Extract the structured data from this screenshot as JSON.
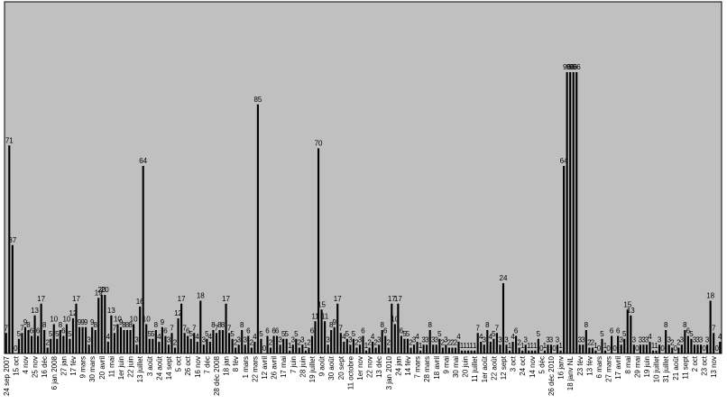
{
  "chart_data": {
    "type": "bar",
    "color": "#000000",
    "background": "#c0c0c0",
    "ylim": [
      0,
      120
    ],
    "categories": [
      "24 sep 2007",
      null,
      null,
      "15 oct",
      null,
      null,
      "4 nov",
      null,
      null,
      "25 nov",
      null,
      null,
      "16 déc",
      null,
      null,
      "6 jan 2008",
      null,
      null,
      "27 jan",
      null,
      null,
      "17 fév",
      null,
      null,
      "9 mars",
      null,
      null,
      "30 mars",
      null,
      null,
      "20 avril",
      null,
      null,
      "11 mai",
      null,
      null,
      "1er juin",
      null,
      null,
      "22 juin",
      null,
      null,
      "13 juillet",
      null,
      null,
      "3 août",
      null,
      null,
      "24 août",
      null,
      null,
      "14 sept",
      null,
      null,
      "5 oct",
      null,
      null,
      "26 oct",
      null,
      null,
      "16 nov",
      null,
      null,
      "7 déc",
      null,
      null,
      "28 déc 2008",
      null,
      null,
      "18 jan",
      null,
      null,
      "8 fév",
      null,
      null,
      "1 mars",
      null,
      null,
      "22 mars",
      null,
      null,
      "12 avril",
      null,
      null,
      "26 avril",
      null,
      null,
      "17 mai",
      null,
      null,
      "7 juin",
      null,
      null,
      "28 juin",
      null,
      null,
      "19 juillet",
      null,
      null,
      "9 août",
      null,
      null,
      "30 août",
      null,
      null,
      "20 sept",
      null,
      null,
      "11 octobre",
      null,
      null,
      "1er nov",
      null,
      null,
      "22 nov",
      null,
      null,
      "13 déc",
      null,
      null,
      "3 jan 2010",
      null,
      null,
      "24 jan",
      null,
      null,
      "14 fév",
      null,
      null,
      "7 mars",
      null,
      null,
      "28 mars",
      null,
      null,
      "18 avril",
      null,
      null,
      "9 mai",
      null,
      null,
      "30 mai",
      null,
      null,
      "20 juin",
      null,
      null,
      "11 juillet",
      null,
      null,
      "1er août",
      null,
      null,
      "22 août",
      null,
      null,
      "12 sept",
      null,
      null,
      "3 oct",
      null,
      null,
      "24 oct",
      null,
      null,
      "14 nov",
      null,
      null,
      "5 déc",
      null,
      null,
      "26 déc 2010",
      null,
      null,
      "16 janv",
      null,
      null,
      "18 janv NL",
      null,
      null,
      "23 fév",
      null,
      null,
      "13 fév",
      null,
      null,
      "6 mars",
      null,
      null,
      "27 mars",
      null,
      null,
      "17 avril",
      null,
      null,
      "8 mai",
      null,
      null,
      "29 mai",
      null,
      null,
      "19 juin",
      null,
      null,
      "10 juillet",
      null,
      null,
      "31 juillet",
      null,
      null,
      "21 août",
      null,
      null,
      "11 sept",
      null,
      null,
      "2 oct",
      null,
      null,
      "23 oct",
      null,
      null,
      "13 nov",
      null,
      null
    ],
    "values": [
      7,
      71,
      37,
      0,
      5,
      7,
      9,
      8,
      6,
      13,
      6,
      17,
      8,
      2,
      5,
      10,
      5,
      8,
      6,
      10,
      5,
      12,
      17,
      9,
      9,
      9,
      3,
      9,
      8,
      19,
      20,
      20,
      4,
      13,
      7,
      10,
      9,
      8,
      8,
      8,
      10,
      3,
      16,
      64,
      10,
      5,
      5,
      8,
      4,
      9,
      6,
      3,
      7,
      2,
      12,
      17,
      7,
      6,
      5,
      7,
      4,
      18,
      3,
      5,
      4,
      8,
      7,
      8,
      8,
      17,
      7,
      5,
      2,
      3,
      8,
      3,
      6,
      2,
      4,
      85,
      5,
      0,
      6,
      2,
      6,
      6,
      3,
      5,
      5,
      1,
      3,
      5,
      2,
      3,
      1,
      2,
      6,
      11,
      70,
      15,
      11,
      3,
      8,
      9,
      17,
      7,
      4,
      5,
      3,
      5,
      2,
      3,
      6,
      1,
      2,
      4,
      2,
      3,
      8,
      6,
      2,
      17,
      10,
      17,
      6,
      5,
      5,
      2,
      3,
      4,
      1,
      3,
      3,
      8,
      3,
      3,
      5,
      2,
      3,
      2,
      2,
      2,
      4,
      1,
      1,
      1,
      1,
      1,
      7,
      4,
      3,
      8,
      4,
      5,
      7,
      3,
      24,
      3,
      1,
      4,
      6,
      2,
      1,
      3,
      1,
      1,
      1,
      5,
      0,
      1,
      3,
      3,
      0,
      3,
      1,
      64,
      96,
      96,
      96,
      96,
      3,
      3,
      8,
      2,
      2,
      1,
      0,
      5,
      1,
      0,
      6,
      0,
      6,
      3,
      5,
      15,
      13,
      3,
      0,
      3,
      3,
      3,
      4,
      1,
      1,
      3,
      0,
      8,
      3,
      2,
      0,
      2,
      3,
      8,
      6,
      5,
      3,
      3,
      3,
      0,
      3,
      18,
      7,
      0,
      4
    ]
  }
}
